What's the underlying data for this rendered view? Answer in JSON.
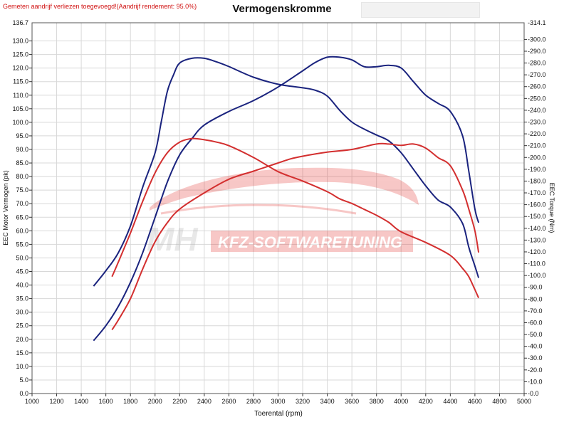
{
  "note": "Gemeten aandrijf verliezen toegevoegd!(Aandrijf rendement: 95.0%)",
  "title": "Vermogenskromme",
  "watermark": {
    "brand_short": "MH",
    "brand_text": "KFZ-SOFTWARETUNING"
  },
  "colors": {
    "series_1": "#1a237e",
    "series_2": "#d32f2f",
    "grid": "#d8d8d8"
  },
  "chart_data": {
    "type": "line",
    "title": "Vermogenskromme",
    "xlabel": "Toerental (rpm)",
    "ylabel_left": "EEC Motor Vermogen (pk)",
    "ylabel_right": "EEC Torque (Nm)",
    "xlim": [
      1000,
      5000
    ],
    "ylim_left": [
      0,
      136.7
    ],
    "ylim_right": [
      0,
      314.1
    ],
    "x_ticks": [
      1000,
      1200,
      1400,
      1600,
      1800,
      2000,
      2200,
      2400,
      2600,
      2800,
      3000,
      3200,
      3400,
      3600,
      3800,
      4000,
      4200,
      4400,
      4600,
      4800,
      5000
    ],
    "y_left_ticks": [
      0,
      5,
      10,
      15,
      20,
      25,
      30,
      35,
      40,
      45,
      50,
      55,
      60,
      65,
      70,
      75,
      80,
      85,
      90,
      95,
      100,
      105,
      110,
      115,
      120,
      125,
      130
    ],
    "y_left_top_label": "136.7",
    "y_right_ticks": [
      0,
      10,
      20,
      30,
      40,
      50,
      60,
      70,
      80,
      90,
      100,
      110,
      120,
      130,
      140,
      150,
      160,
      170,
      180,
      190,
      200,
      210,
      220,
      230,
      240,
      250,
      260,
      270,
      280,
      290,
      300
    ],
    "y_right_top_label": "314.1",
    "grid": true,
    "series": [
      {
        "color": "#1a237e",
        "axis": "right",
        "x": [
          1500,
          1600,
          1700,
          1800,
          1900,
          2000,
          2050,
          2100,
          2150,
          2200,
          2300,
          2400,
          2500,
          2600,
          2800,
          3000,
          3200,
          3300,
          3400,
          3500,
          3600,
          3700,
          3800,
          3900,
          4000,
          4100,
          4200,
          4300,
          4400,
          4500,
          4550,
          4600,
          4630
        ],
        "y": [
          91,
          104,
          119,
          142,
          175,
          204,
          230,
          256,
          270,
          280,
          284,
          284,
          281,
          277,
          268,
          262,
          259,
          257,
          252,
          240,
          230,
          224,
          219,
          214,
          204,
          190,
          176,
          164,
          158,
          144,
          124,
          108,
          98
        ]
      },
      {
        "color": "#1a237e",
        "axis": "left",
        "x": [
          1500,
          1600,
          1700,
          1800,
          1900,
          2000,
          2100,
          2200,
          2300,
          2400,
          2600,
          2800,
          3000,
          3200,
          3300,
          3400,
          3500,
          3600,
          3700,
          3800,
          3900,
          4000,
          4100,
          4200,
          4300,
          4400,
          4500,
          4550,
          4600,
          4630
        ],
        "y": [
          19.5,
          25,
          32,
          41,
          52,
          65,
          78,
          88,
          94,
          99,
          104,
          108,
          113,
          119,
          122,
          124,
          124,
          123,
          120.5,
          120.5,
          121,
          120,
          115,
          110,
          107,
          104,
          95,
          82,
          68,
          63
        ]
      },
      {
        "color": "#d32f2f",
        "axis": "right",
        "x": [
          1650,
          1700,
          1800,
          1900,
          2000,
          2100,
          2200,
          2300,
          2400,
          2500,
          2600,
          2800,
          3000,
          3200,
          3400,
          3500,
          3600,
          3700,
          3800,
          3900,
          4000,
          4200,
          4400,
          4500,
          4550,
          4600,
          4630
        ],
        "y": [
          99,
          111,
          136,
          163,
          187,
          204,
          213,
          216,
          215,
          213,
          210,
          200,
          188,
          180,
          171,
          165,
          161,
          156,
          151,
          145,
          137,
          128,
          117,
          106,
          99,
          88,
          81
        ]
      },
      {
        "color": "#d32f2f",
        "axis": "left",
        "x": [
          1650,
          1700,
          1800,
          1900,
          2000,
          2100,
          2200,
          2400,
          2600,
          2800,
          3000,
          3100,
          3200,
          3400,
          3600,
          3800,
          3900,
          4000,
          4100,
          4200,
          4300,
          4400,
          4500,
          4550,
          4600,
          4630
        ],
        "y": [
          23.5,
          27,
          35,
          46,
          56,
          63,
          68,
          74,
          79,
          82,
          85,
          86.5,
          87.5,
          89,
          90,
          92,
          92,
          91.5,
          92,
          90.5,
          87,
          84,
          75,
          68,
          60,
          52
        ]
      }
    ]
  }
}
